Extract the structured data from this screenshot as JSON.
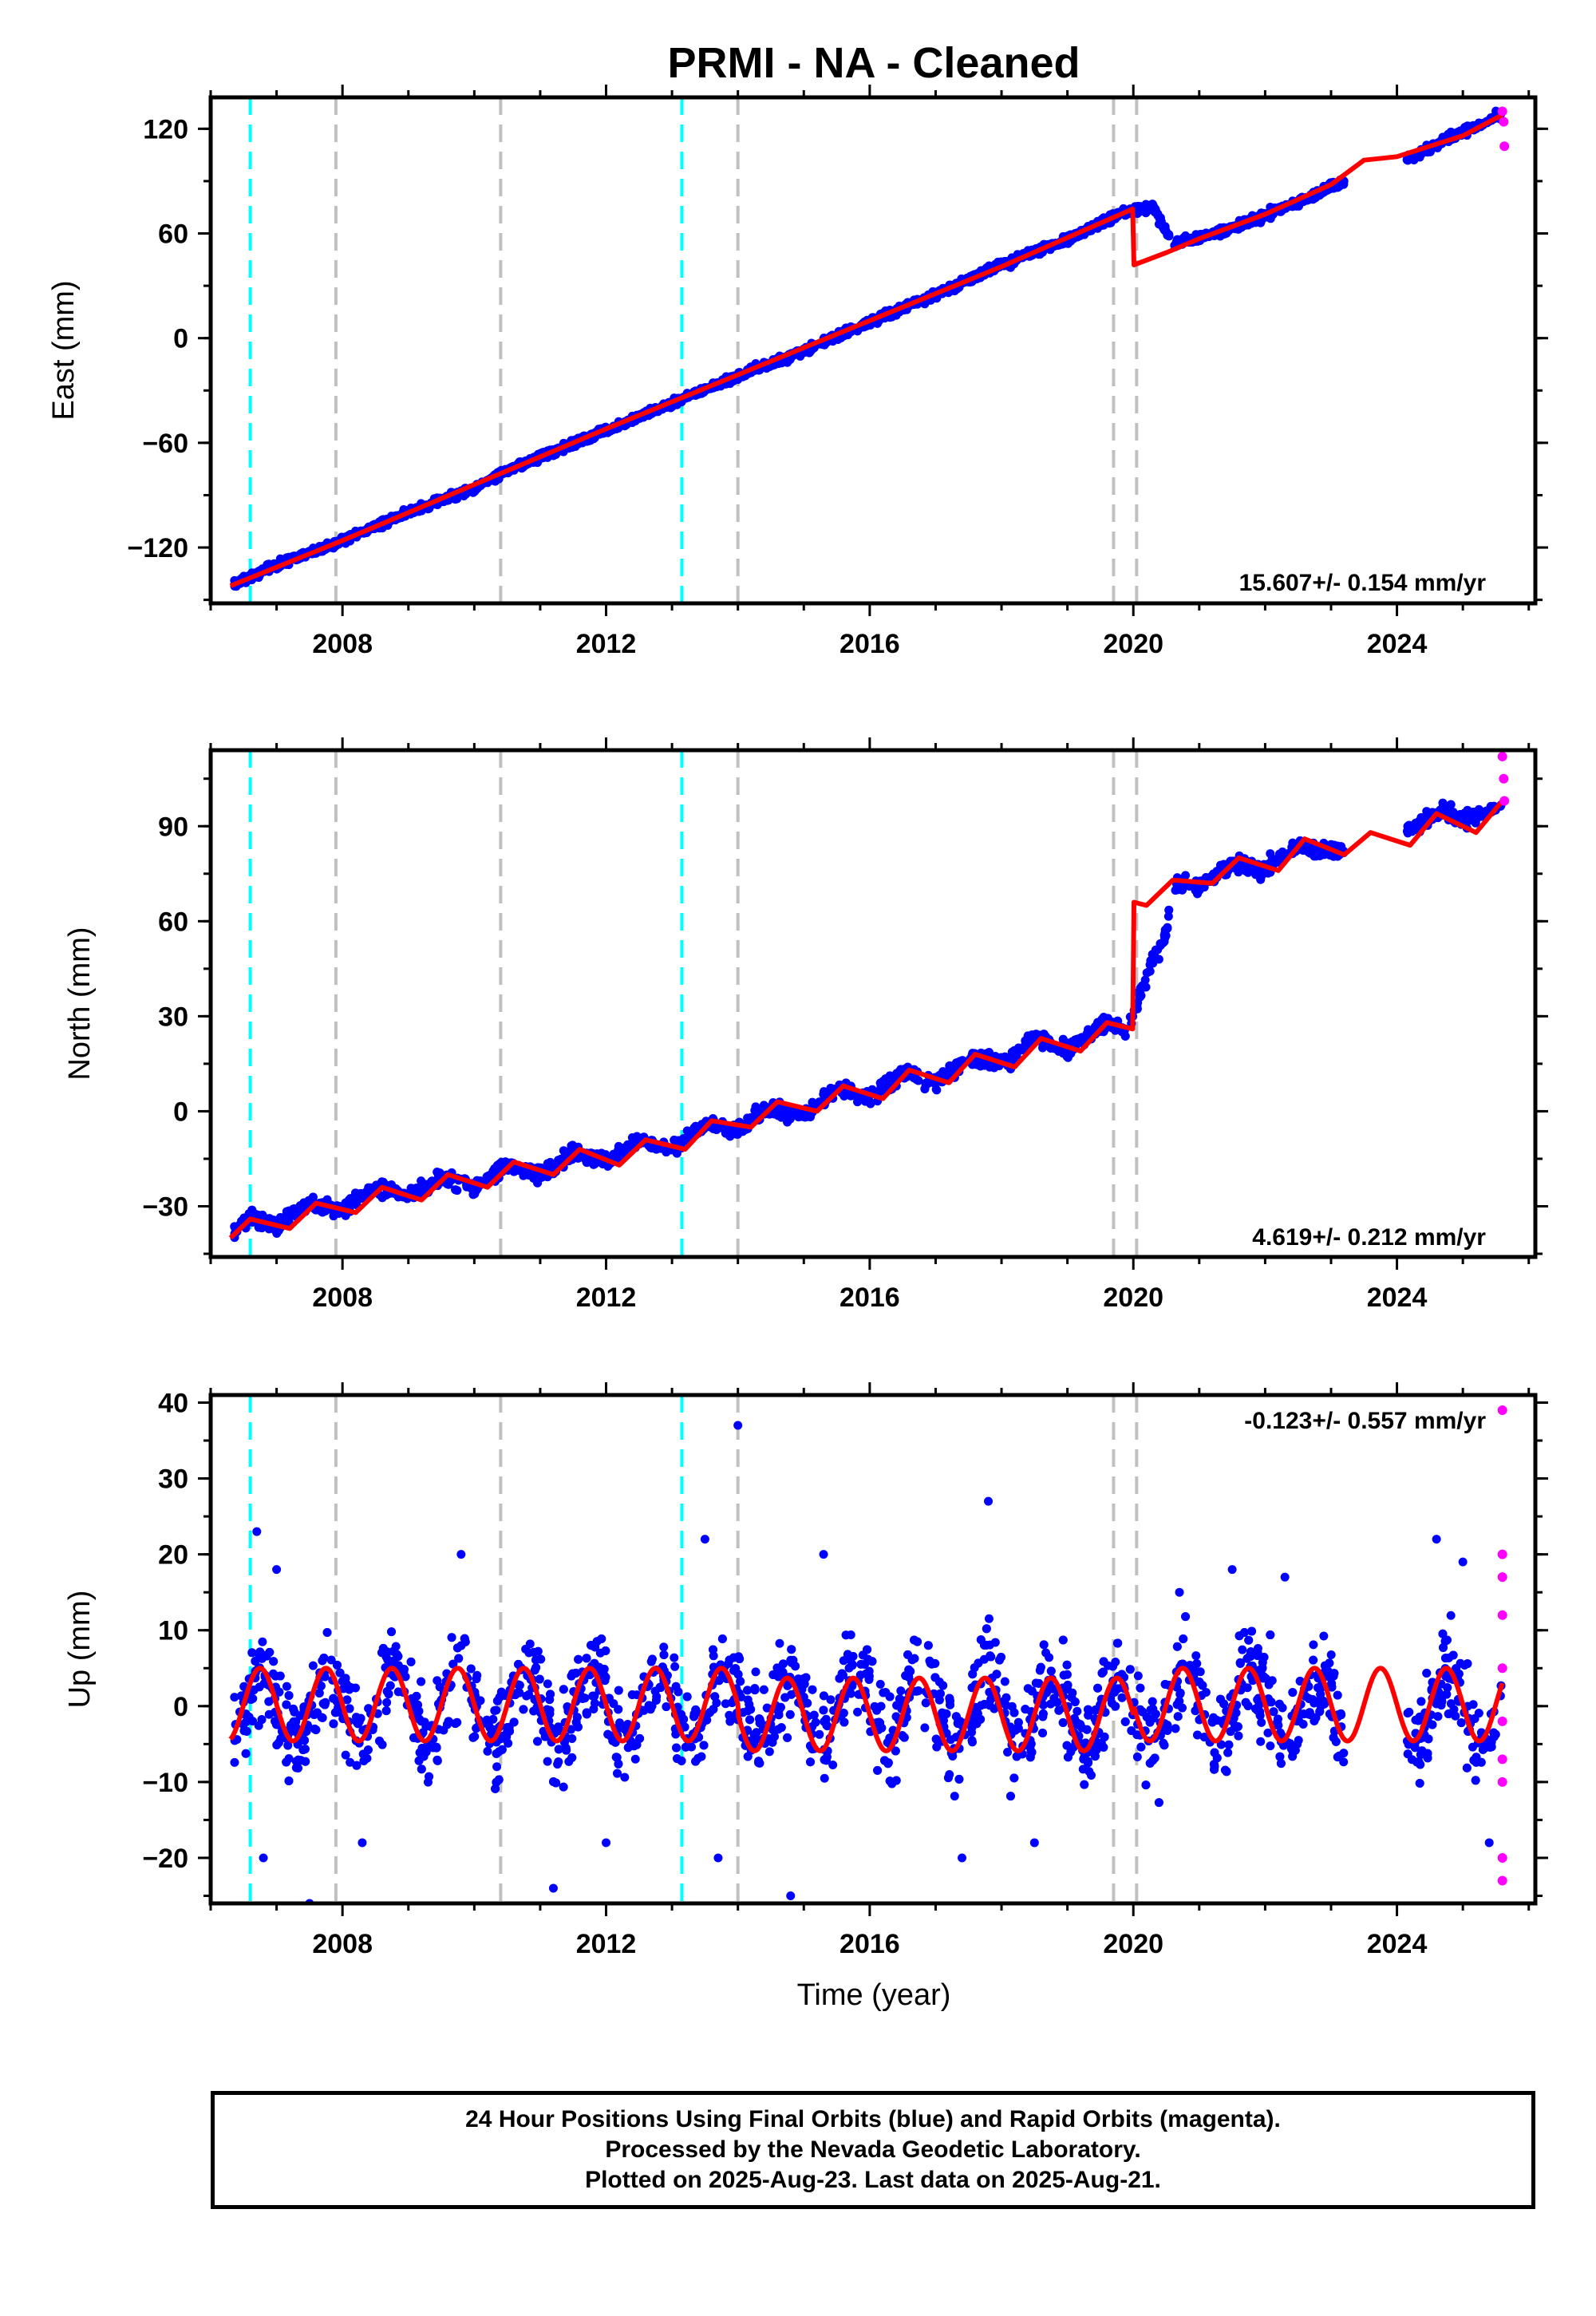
{
  "title": "PRMI  - NA - Cleaned",
  "xlabel": "Time (year)",
  "footer": {
    "line1": "24 Hour Positions Using Final Orbits (blue) and Rapid Orbits (magenta).",
    "line2": "Processed by the Nevada Geodetic Laboratory.",
    "line3": "Plotted on 2025-Aug-23. Last data on 2025-Aug-21."
  },
  "colors": {
    "final_orbits": "#0000ff",
    "rapid_orbits": "#ff00ff",
    "model": "#ff0000",
    "equipment_change": "#c0c0c0",
    "earthquake": "#00ffff"
  },
  "chart_data": [
    {
      "type": "scatter",
      "panel": "east",
      "ylabel": "East (mm)",
      "rate_label": "15.607+/- 0.154 mm/yr",
      "xlim": [
        2006.0,
        2026.1
      ],
      "ylim": [
        -152,
        138
      ],
      "xticks": [
        2008,
        2012,
        2016,
        2020,
        2024
      ],
      "yticks": [
        -120,
        -60,
        0,
        60,
        120
      ],
      "ytick_labels": [
        "−120",
        "−60",
        "0",
        "60",
        "120"
      ],
      "grid": false,
      "vlines_gray": [
        2007.9,
        2010.4,
        2014.0,
        2019.7,
        2020.05
      ],
      "vlines_cyan": [
        2006.6,
        2013.15
      ],
      "series": [
        {
          "name": "Final Orbits",
          "points": [
            [
              2006.3,
              -142
            ],
            [
              2007.0,
              -130
            ],
            [
              2008.0,
              -116
            ],
            [
              2009.0,
              -100
            ],
            [
              2010.0,
              -86
            ],
            [
              2010.5,
              -76
            ],
            [
              2011.0,
              -68
            ],
            [
              2012.0,
              -53
            ],
            [
              2013.0,
              -37
            ],
            [
              2014.0,
              -22
            ],
            [
              2015.0,
              -7
            ],
            [
              2016.0,
              9
            ],
            [
              2017.0,
              25
            ],
            [
              2018.0,
              42
            ],
            [
              2019.0,
              57
            ],
            [
              2019.9,
              73
            ],
            [
              2020.3,
              75
            ],
            [
              2020.6,
              54
            ],
            [
              2021.0,
              58
            ],
            [
              2021.5,
              63
            ],
            [
              2022.0,
              70
            ],
            [
              2022.5,
              78
            ],
            [
              2023.0,
              87
            ],
            [
              2023.3,
              91
            ],
            [
              2024.3,
              105
            ],
            [
              2024.8,
              115
            ],
            [
              2025.3,
              123
            ],
            [
              2025.55,
              128
            ]
          ]
        },
        {
          "name": "Rapid Orbits",
          "points": [
            [
              2025.6,
              130
            ],
            [
              2025.62,
              124
            ],
            [
              2025.63,
              110
            ]
          ]
        },
        {
          "name": "Model",
          "points": [
            [
              2006.3,
              -142
            ],
            [
              2008.0,
              -116
            ],
            [
              2010.0,
              -84
            ],
            [
              2012.0,
              -52
            ],
            [
              2014.0,
              -21
            ],
            [
              2016.0,
              10
            ],
            [
              2018.0,
              41
            ],
            [
              2019.99,
              74
            ],
            [
              2020.01,
              42
            ],
            [
              2020.5,
              49
            ],
            [
              2021.0,
              57
            ],
            [
              2022.0,
              71
            ],
            [
              2023.0,
              88
            ],
            [
              2023.5,
              102
            ],
            [
              2024.0,
              104
            ],
            [
              2024.5,
              110
            ],
            [
              2025.0,
              116
            ],
            [
              2025.6,
              128
            ]
          ]
        }
      ]
    },
    {
      "type": "scatter",
      "panel": "north",
      "ylabel": "North (mm)",
      "rate_label": "4.619+/- 0.212 mm/yr",
      "xlim": [
        2006.0,
        2026.1
      ],
      "ylim": [
        -46,
        114
      ],
      "xticks": [
        2008,
        2012,
        2016,
        2020,
        2024
      ],
      "yticks": [
        -30,
        0,
        30,
        60,
        90
      ],
      "ytick_labels": [
        "−30",
        "0",
        "30",
        "60",
        "90"
      ],
      "grid": false,
      "vlines_gray": [
        2007.9,
        2010.4,
        2014.0,
        2019.7,
        2020.05
      ],
      "vlines_cyan": [
        2006.6,
        2013.15
      ],
      "series": [
        {
          "name": "Final Orbits",
          "points": [
            [
              2006.3,
              -40
            ],
            [
              2006.6,
              -33
            ],
            [
              2007.0,
              -36
            ],
            [
              2007.5,
              -29
            ],
            [
              2008.0,
              -31
            ],
            [
              2008.5,
              -24
            ],
            [
              2009.0,
              -27
            ],
            [
              2009.5,
              -21
            ],
            [
              2010.0,
              -24
            ],
            [
              2010.5,
              -17
            ],
            [
              2011.0,
              -20
            ],
            [
              2011.5,
              -13
            ],
            [
              2012.0,
              -16
            ],
            [
              2012.5,
              -9
            ],
            [
              2013.0,
              -12
            ],
            [
              2013.5,
              -4
            ],
            [
              2014.0,
              -6
            ],
            [
              2014.5,
              1
            ],
            [
              2015.0,
              -1
            ],
            [
              2015.5,
              7
            ],
            [
              2016.0,
              4
            ],
            [
              2016.5,
              12
            ],
            [
              2017.0,
              9
            ],
            [
              2017.5,
              17
            ],
            [
              2018.0,
              15
            ],
            [
              2018.5,
              23
            ],
            [
              2019.0,
              20
            ],
            [
              2019.6,
              28
            ],
            [
              2019.9,
              26
            ],
            [
              2020.1,
              37
            ],
            [
              2020.3,
              48
            ],
            [
              2020.5,
              56
            ],
            [
              2020.6,
              72
            ],
            [
              2021.0,
              71
            ],
            [
              2021.5,
              78
            ],
            [
              2022.0,
              76
            ],
            [
              2022.5,
              84
            ],
            [
              2023.0,
              82
            ],
            [
              2024.3,
              90
            ],
            [
              2024.7,
              95
            ],
            [
              2025.0,
              92
            ],
            [
              2025.5,
              96
            ]
          ]
        },
        {
          "name": "Rapid Orbits",
          "points": [
            [
              2025.6,
              112
            ],
            [
              2025.62,
              105
            ],
            [
              2025.63,
              98
            ]
          ]
        },
        {
          "name": "Model",
          "points": [
            [
              2006.3,
              -40
            ],
            [
              2006.6,
              -34
            ],
            [
              2007.2,
              -37
            ],
            [
              2007.6,
              -29
            ],
            [
              2008.2,
              -32
            ],
            [
              2008.6,
              -24
            ],
            [
              2009.2,
              -28
            ],
            [
              2009.6,
              -20
            ],
            [
              2010.2,
              -24
            ],
            [
              2010.6,
              -16
            ],
            [
              2011.2,
              -20
            ],
            [
              2011.6,
              -12
            ],
            [
              2012.2,
              -17
            ],
            [
              2012.6,
              -9
            ],
            [
              2013.2,
              -12
            ],
            [
              2013.6,
              -3
            ],
            [
              2014.2,
              -5
            ],
            [
              2014.6,
              3
            ],
            [
              2015.2,
              0
            ],
            [
              2015.6,
              8
            ],
            [
              2016.2,
              4
            ],
            [
              2016.6,
              13
            ],
            [
              2017.2,
              9
            ],
            [
              2017.6,
              18
            ],
            [
              2018.2,
              14
            ],
            [
              2018.6,
              23
            ],
            [
              2019.2,
              19
            ],
            [
              2019.6,
              28
            ],
            [
              2019.99,
              26
            ],
            [
              2020.01,
              66
            ],
            [
              2020.2,
              65
            ],
            [
              2020.6,
              73
            ],
            [
              2021.2,
              72
            ],
            [
              2021.6,
              80
            ],
            [
              2022.2,
              76
            ],
            [
              2022.6,
              86
            ],
            [
              2023.2,
              81
            ],
            [
              2023.6,
              88
            ],
            [
              2024.2,
              84
            ],
            [
              2024.6,
              94
            ],
            [
              2025.2,
              88
            ],
            [
              2025.6,
              98
            ]
          ]
        }
      ]
    },
    {
      "type": "scatter",
      "panel": "up",
      "ylabel": "Up (mm)",
      "rate_label": "-0.123+/- 0.557 mm/yr",
      "xlim": [
        2006.0,
        2026.1
      ],
      "ylim": [
        -26,
        41
      ],
      "xticks": [
        2008,
        2012,
        2016,
        2020,
        2024
      ],
      "yticks": [
        -20,
        -10,
        0,
        10,
        20,
        30,
        40
      ],
      "ytick_labels": [
        "−20",
        "−10",
        "0",
        "10",
        "20",
        "30",
        "40"
      ],
      "grid": false,
      "vlines_gray": [
        2007.9,
        2010.4,
        2014.0,
        2019.7,
        2020.05
      ],
      "vlines_cyan": [
        2006.6,
        2013.15
      ],
      "series": [
        {
          "name": "Final Orbits",
          "points": [
            [
              2006.7,
              23
            ],
            [
              2006.8,
              -20
            ],
            [
              2007.0,
              18
            ],
            [
              2007.5,
              -26
            ],
            [
              2008.3,
              -18
            ],
            [
              2009.8,
              20
            ],
            [
              2011.2,
              -24
            ],
            [
              2012.0,
              -18
            ],
            [
              2013.5,
              22
            ],
            [
              2013.7,
              -20
            ],
            [
              2014.0,
              37
            ],
            [
              2014.8,
              -25
            ],
            [
              2015.3,
              20
            ],
            [
              2017.4,
              -20
            ],
            [
              2017.8,
              27
            ],
            [
              2018.5,
              -18
            ],
            [
              2020.7,
              15
            ],
            [
              2021.5,
              18
            ],
            [
              2022.3,
              17
            ],
            [
              2024.6,
              22
            ],
            [
              2025.0,
              19
            ],
            [
              2025.4,
              -18
            ]
          ]
        },
        {
          "name": "Rapid Orbits",
          "points": [
            [
              2025.6,
              39
            ],
            [
              2025.6,
              20
            ],
            [
              2025.6,
              17
            ],
            [
              2025.6,
              12
            ],
            [
              2025.6,
              5
            ],
            [
              2025.6,
              -2
            ],
            [
              2025.6,
              -7
            ],
            [
              2025.6,
              -10
            ],
            [
              2025.6,
              -20
            ],
            [
              2025.6,
              -23
            ]
          ]
        },
        {
          "name": "Model",
          "points": [
            [
              2006.3,
              1
            ],
            [
              2006.75,
              5
            ],
            [
              2007.25,
              -4
            ],
            [
              2007.75,
              5
            ],
            [
              2025.6,
              1
            ]
          ]
        }
      ]
    }
  ]
}
